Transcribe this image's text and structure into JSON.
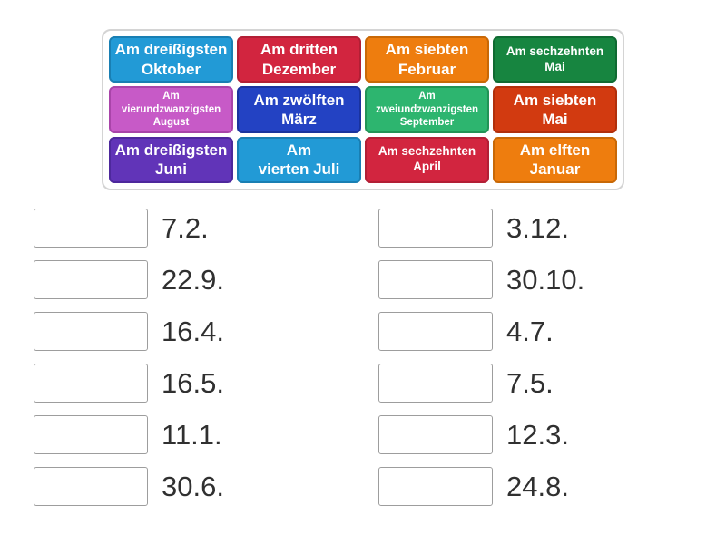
{
  "panel": {
    "tiles": [
      {
        "label": "Am dreißigsten\nOktober",
        "bg": "#229ad6",
        "border": "#197fb3"
      },
      {
        "label": "Am dritten\nDezember",
        "bg": "#d2253f",
        "border": "#b21f35"
      },
      {
        "label": "Am siebten\nFebruar",
        "bg": "#ee7d0e",
        "border": "#c86806"
      },
      {
        "label": "Am sechzehnten\nMai",
        "bg": "#178540",
        "border": "#0f6a32"
      },
      {
        "label": "Am\nvierundzwanzigsten\nAugust",
        "bg": "#c75ac7",
        "border": "#a944a9"
      },
      {
        "label": "Am zwölften\nMärz",
        "bg": "#2342c3",
        "border": "#1a339e"
      },
      {
        "label": "Am\nzweiundzwanzigsten\nSeptember",
        "bg": "#2db56f",
        "border": "#219356"
      },
      {
        "label": "Am siebten\nMai",
        "bg": "#d23a10",
        "border": "#b12f0b"
      },
      {
        "label": "Am dreißigsten\nJuni",
        "bg": "#6134b8",
        "border": "#4d289c"
      },
      {
        "label": "Am\nvierten Juli",
        "bg": "#229ad6",
        "border": "#197fb3"
      },
      {
        "label": "Am sechzehnten\nApril",
        "bg": "#d2253f",
        "border": "#b21f35"
      },
      {
        "label": "Am elften\nJanuar",
        "bg": "#ee7d0e",
        "border": "#c86806"
      }
    ]
  },
  "matches": {
    "left": [
      "7.2.",
      "22.9.",
      "16.4.",
      "16.5.",
      "11.1.",
      "30.6."
    ],
    "right": [
      "3.12.",
      "30.10.",
      "4.7.",
      "7.5.",
      "12.3.",
      "24.8."
    ]
  }
}
